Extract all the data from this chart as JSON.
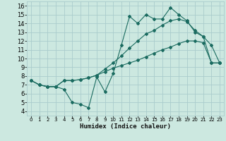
{
  "xlabel": "Humidex (Indice chaleur)",
  "bg_color": "#cce8e0",
  "grid_color": "#aacccc",
  "line_color": "#1a6b60",
  "xlim": [
    -0.5,
    23.5
  ],
  "ylim": [
    3.5,
    16.5
  ],
  "xticks": [
    0,
    1,
    2,
    3,
    4,
    5,
    6,
    7,
    8,
    9,
    10,
    11,
    12,
    13,
    14,
    15,
    16,
    17,
    18,
    19,
    20,
    21,
    22,
    23
  ],
  "yticks": [
    4,
    5,
    6,
    7,
    8,
    9,
    10,
    11,
    12,
    13,
    14,
    15,
    16
  ],
  "line1_x": [
    0,
    1,
    2,
    3,
    4,
    5,
    6,
    7,
    8,
    9,
    10,
    11,
    12,
    13,
    14,
    15,
    16,
    17,
    18,
    19,
    20,
    21,
    22,
    23
  ],
  "line1_y": [
    7.5,
    7.0,
    6.8,
    6.8,
    6.5,
    5.0,
    4.8,
    4.4,
    7.9,
    6.2,
    8.3,
    11.5,
    14.8,
    14.0,
    15.0,
    14.5,
    14.5,
    15.8,
    15.0,
    14.3,
    13.0,
    12.5,
    11.5,
    9.5
  ],
  "line2_x": [
    0,
    1,
    2,
    3,
    4,
    5,
    6,
    7,
    8,
    9,
    10,
    11,
    12,
    13,
    14,
    15,
    16,
    17,
    18,
    19,
    20,
    21,
    22,
    23
  ],
  "line2_y": [
    7.5,
    7.0,
    6.8,
    6.8,
    7.5,
    7.5,
    7.6,
    7.8,
    8.1,
    8.8,
    9.5,
    10.3,
    11.2,
    12.0,
    12.8,
    13.2,
    13.8,
    14.3,
    14.5,
    14.2,
    13.2,
    12.5,
    9.5,
    9.5
  ],
  "line3_x": [
    0,
    1,
    2,
    3,
    4,
    5,
    6,
    7,
    8,
    9,
    10,
    11,
    12,
    13,
    14,
    15,
    16,
    17,
    18,
    19,
    20,
    21,
    22,
    23
  ],
  "line3_y": [
    7.5,
    7.0,
    6.8,
    6.8,
    7.5,
    7.5,
    7.6,
    7.8,
    8.1,
    8.5,
    8.9,
    9.2,
    9.5,
    9.8,
    10.2,
    10.6,
    11.0,
    11.3,
    11.7,
    12.0,
    12.0,
    11.8,
    9.5,
    9.5
  ]
}
